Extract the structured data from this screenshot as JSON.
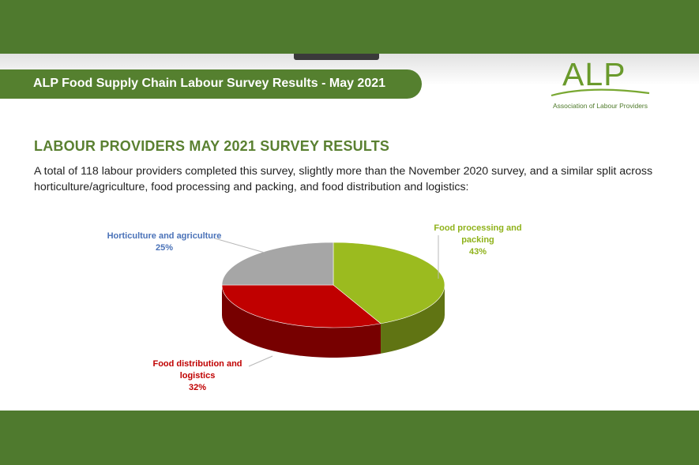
{
  "banner": {
    "title": "ALP Food Supply Chain Labour Survey Results - May 2021"
  },
  "logo": {
    "name": "ALP",
    "subtitle": "Association of Labour Providers"
  },
  "section": {
    "heading": "LABOUR PROVIDERS MAY 2021 SURVEY RESULTS",
    "intro": "A total of 118 labour providers completed this survey, slightly more than the November 2020 survey, and a similar split across horticulture/agriculture, food processing and packing, and food distribution and logistics:"
  },
  "colors": {
    "brand_green": "#4f7a2e",
    "slice_processing": "#9bbb1f",
    "slice_distribution": "#c00000",
    "slice_horticulture": "#a6a6a6",
    "label_horticulture": "#4a72b8"
  },
  "chart_data": {
    "type": "pie",
    "title": "",
    "slices": [
      {
        "label_lines": [
          "Food processing and",
          "packing"
        ],
        "value": 43,
        "value_text": "43%",
        "color": "#9bbb1f"
      },
      {
        "label_lines": [
          "Food distribution and",
          "logistics"
        ],
        "value": 32,
        "value_text": "32%",
        "color": "#c00000"
      },
      {
        "label_lines": [
          "Horticulture and agriculture"
        ],
        "value": 25,
        "value_text": "25%",
        "color": "#a6a6a6"
      }
    ]
  }
}
